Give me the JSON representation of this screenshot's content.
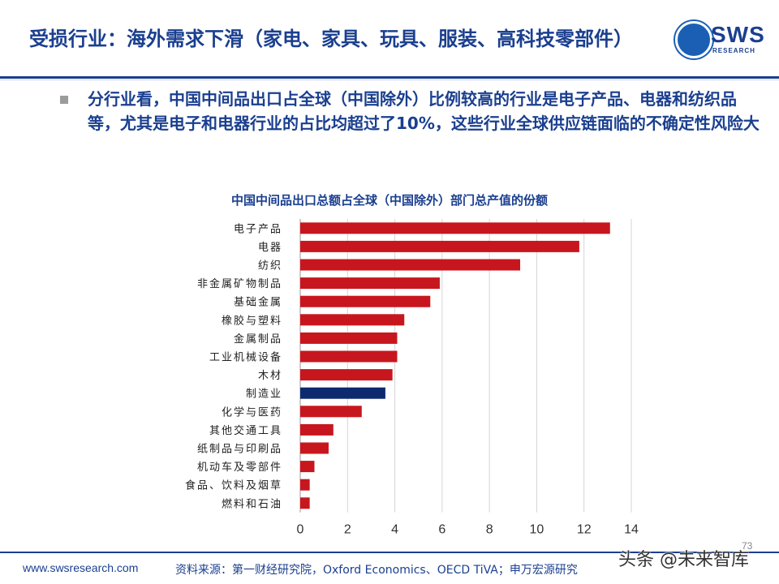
{
  "header": {
    "title": "受损行业：海外需求下滑（家电、家具、玩具、服装、高科技零部件）",
    "logo_text": "SWS",
    "logo_sub": "RESEARCH"
  },
  "bullet": {
    "text": "分行业看，中国中间品出口占全球（中国除外）比例较高的行业是电子产品、电器和纺织品等，尤其是电子和电器行业的占比均超过了10%，这些行业全球供应链面临的不确定性风险大"
  },
  "chart_data": {
    "type": "bar",
    "orientation": "horizontal",
    "title": "中国中间品出口总额占全球（中国除外）部门总产值的份额",
    "categories": [
      "电子产品",
      "电器",
      "纺织",
      "非金属矿物制品",
      "基础金属",
      "橡胶与塑料",
      "金属制品",
      "工业机械设备",
      "木材",
      "制造业",
      "化学与医药",
      "其他交通工具",
      "纸制品与印刷品",
      "机动车及零部件",
      "食品、饮料及烟草",
      "燃料和石油"
    ],
    "values": [
      13.1,
      11.8,
      9.3,
      5.9,
      5.5,
      4.4,
      4.1,
      4.1,
      3.9,
      3.6,
      2.6,
      1.4,
      1.2,
      0.6,
      0.4,
      0.4
    ],
    "highlight": "制造业",
    "xlim": [
      0,
      14
    ],
    "xticks": [
      0,
      2,
      4,
      6,
      8,
      10,
      12,
      14
    ],
    "colors": {
      "bar": "#c8161e",
      "highlight": "#0d2a6e"
    }
  },
  "footer": {
    "url": "www.swsresearch.com",
    "source": "资料来源：第一财经研究院，Oxford Economics、OECD TiVA；申万宏源研究",
    "page": "73",
    "watermark": "头条 @未来智库"
  }
}
